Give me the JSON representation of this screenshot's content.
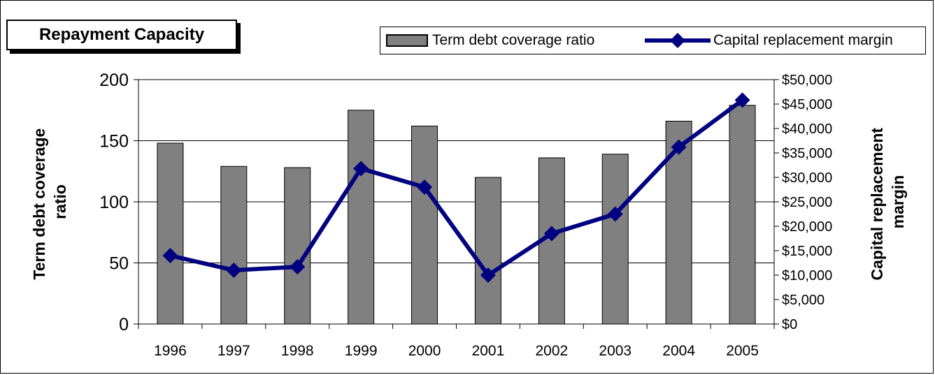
{
  "chart_data": {
    "type": "bar",
    "title": "Repayment Capacity",
    "categories": [
      "1996",
      "1997",
      "1998",
      "1999",
      "2000",
      "2001",
      "2002",
      "2003",
      "2004",
      "2005"
    ],
    "series": [
      {
        "name": "Term debt coverage ratio",
        "type": "bar",
        "axis": "left",
        "color": "#808080",
        "values": [
          148,
          129,
          128,
          175,
          162,
          120,
          136,
          139,
          166,
          179
        ]
      },
      {
        "name": "Capital replacement margin",
        "type": "line",
        "axis": "right",
        "color": "#000080",
        "values": [
          14000,
          11000,
          11700,
          31800,
          28000,
          10000,
          18500,
          22500,
          36200,
          45800
        ]
      }
    ],
    "ylabel": "Term debt coverage ratio",
    "y2label": "Capital replacement margin",
    "ylim": [
      0,
      200
    ],
    "y2lim": [
      0,
      50000
    ],
    "yticks": [
      "0",
      "50",
      "100",
      "150",
      "200"
    ],
    "y2ticks": [
      "$0",
      "$5,000",
      "$10,000",
      "$15,000",
      "$20,000",
      "$25,000",
      "$30,000",
      "$35,000",
      "$40,000",
      "$45,000",
      "$50,000"
    ],
    "grid": true,
    "legend": "top-right"
  }
}
